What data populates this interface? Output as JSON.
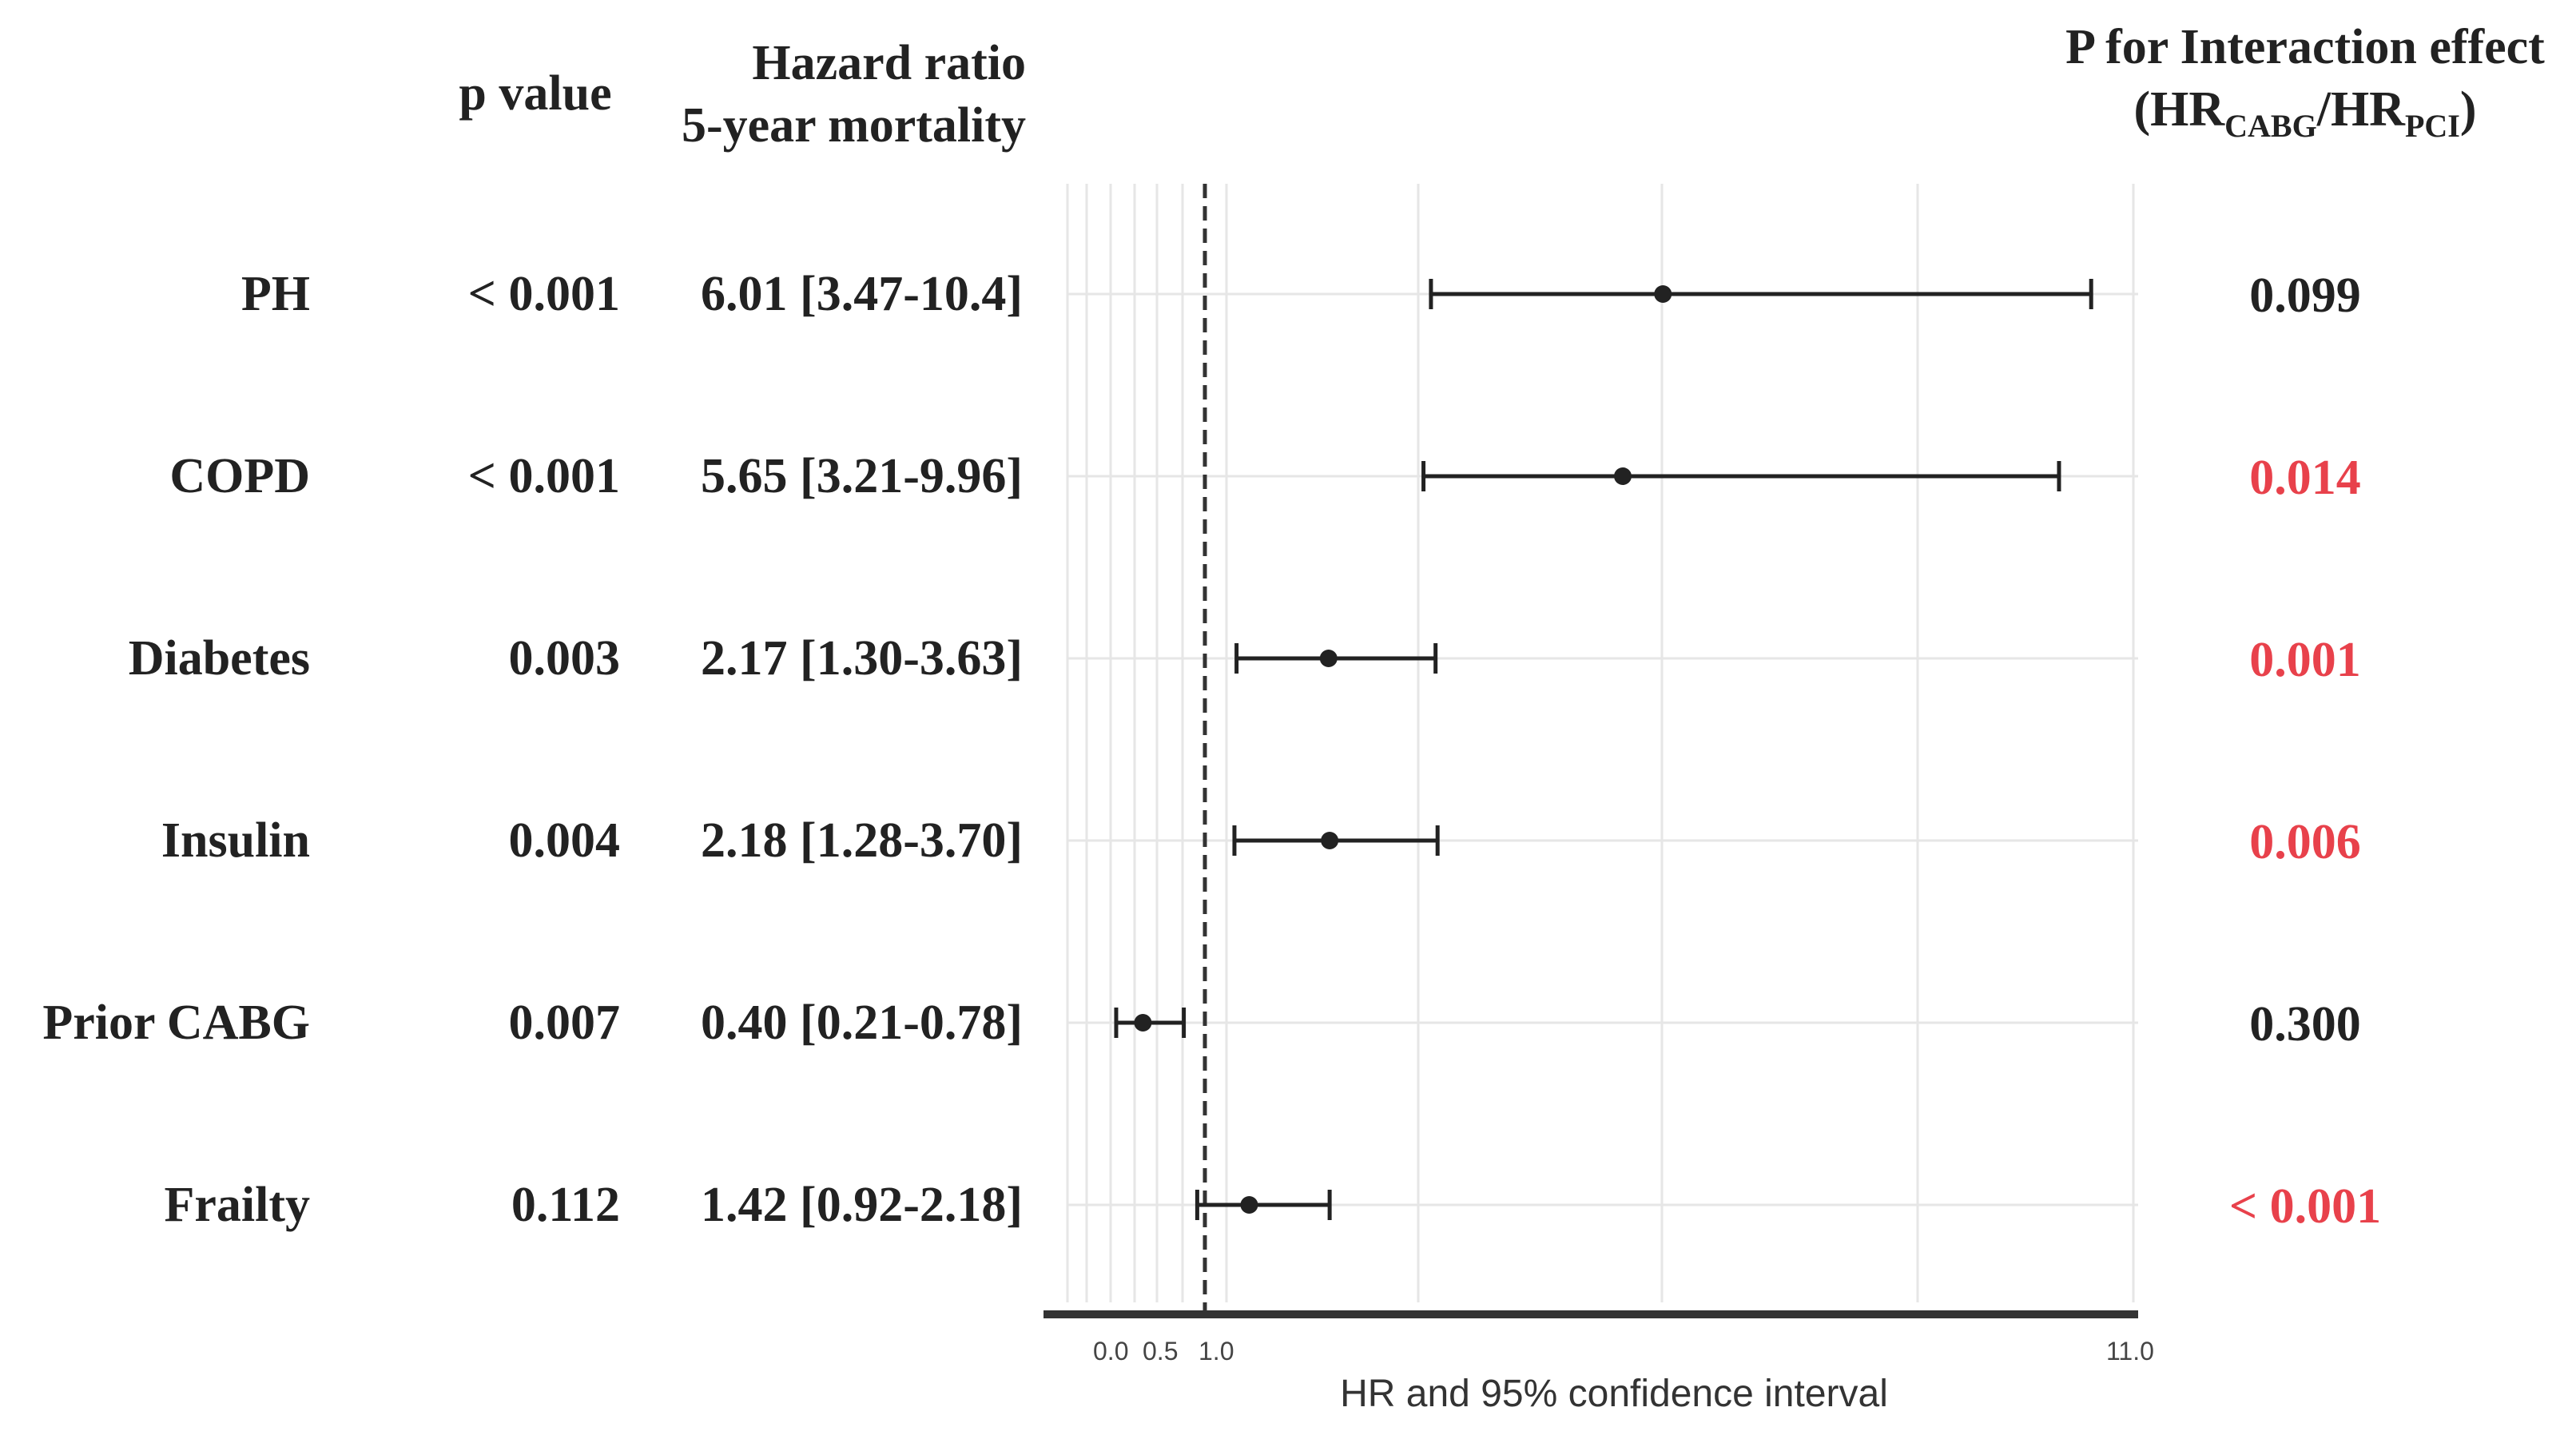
{
  "headers": {
    "pvalue": "p value",
    "hr_line1": "Hazard ratio",
    "hr_line2": "5-year mortality",
    "interaction_line1": "P for Interaction effect",
    "interaction_open": "(HR",
    "interaction_sub1": "CABG",
    "interaction_slash": "/HR",
    "interaction_sub2": "PCI",
    "interaction_close": ")"
  },
  "colors": {
    "text": "#222222",
    "significant": "#e8414b",
    "grid": "#e6e6e6",
    "axis": "#333333",
    "marker": "#222222"
  },
  "chart_data": {
    "type": "forest",
    "xlabel": "HR and 95% confidence interval",
    "xticks": [
      "0.0",
      "0.5",
      "1.0",
      "11.0"
    ],
    "xlim": [
      0,
      11.0
    ],
    "reference_line": 1.0,
    "rows": [
      {
        "label": "PH",
        "p_value": "< 0.001",
        "hr_text": "6.01 [3.47-10.4]",
        "hr": 6.01,
        "lower": 3.47,
        "upper": 10.4,
        "interaction_p": "0.099",
        "interaction_significant": false
      },
      {
        "label": "COPD",
        "p_value": "< 0.001",
        "hr_text": "5.65 [3.21-9.96]",
        "hr": 5.65,
        "lower": 3.21,
        "upper": 9.96,
        "interaction_p": "0.014",
        "interaction_significant": true
      },
      {
        "label": "Diabetes",
        "p_value": "0.003",
        "hr_text": "2.17 [1.30-3.63]",
        "hr": 2.17,
        "lower": 1.3,
        "upper": 3.63,
        "interaction_p": "0.001",
        "interaction_significant": true
      },
      {
        "label": "Insulin",
        "p_value": "0.004",
        "hr_text": "2.18 [1.28-3.70]",
        "hr": 2.18,
        "lower": 1.28,
        "upper": 3.7,
        "interaction_p": "0.006",
        "interaction_significant": true
      },
      {
        "label": "Prior CABG",
        "p_value": "0.007",
        "hr_text": "0.40 [0.21-0.78]",
        "hr": 0.4,
        "lower": 0.21,
        "upper": 0.78,
        "interaction_p": "0.300",
        "interaction_significant": false
      },
      {
        "label": "Frailty",
        "p_value": "0.112",
        "hr_text": "1.42 [0.92-2.18]",
        "hr": 1.42,
        "lower": 0.92,
        "upper": 2.18,
        "interaction_p": "< 0.001",
        "interaction_significant": true
      }
    ]
  }
}
